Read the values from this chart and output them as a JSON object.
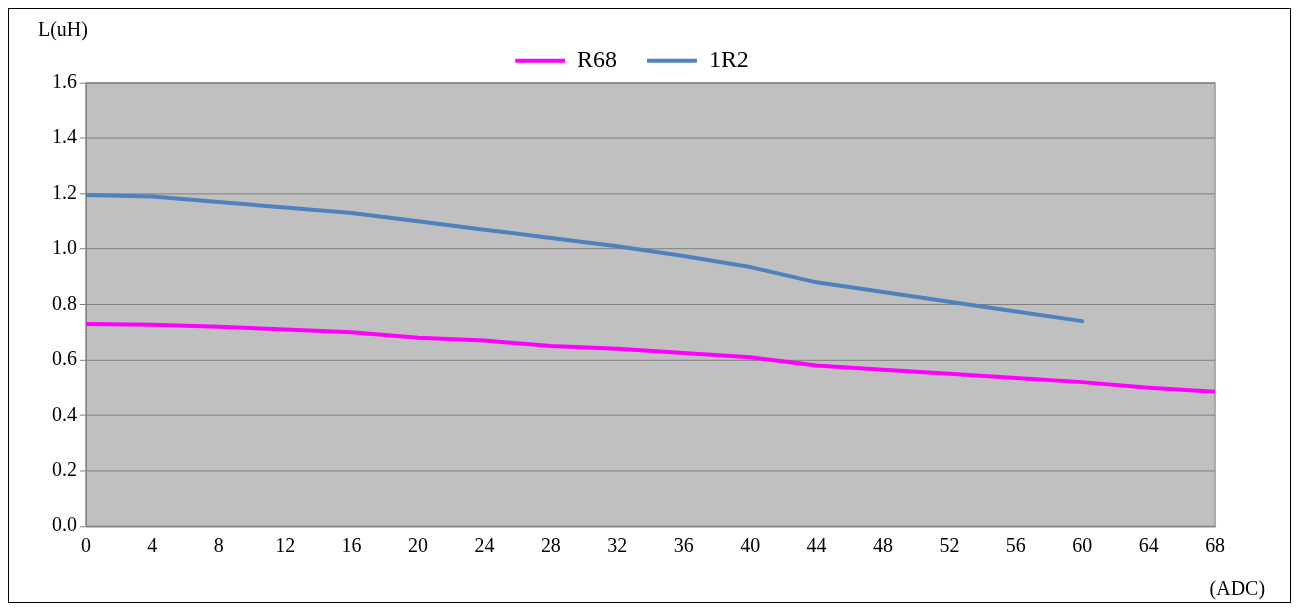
{
  "chart_data": {
    "type": "line",
    "xlabel": "(ADC)",
    "ylabel": "L(uH)",
    "x": [
      0,
      4,
      8,
      12,
      16,
      20,
      24,
      28,
      32,
      36,
      40,
      44,
      48,
      52,
      56,
      60,
      64,
      68
    ],
    "series": [
      {
        "name": "R68",
        "color": "#ff00ff",
        "values": [
          0.73,
          0.727,
          0.72,
          0.71,
          0.7,
          0.68,
          0.67,
          0.65,
          0.64,
          0.625,
          0.61,
          0.58,
          0.565,
          0.55,
          0.535,
          0.52,
          0.5,
          0.485
        ]
      },
      {
        "name": "1R2",
        "color": "#4f81bd",
        "values": [
          1.195,
          1.19,
          1.17,
          1.15,
          1.13,
          1.1,
          1.07,
          1.04,
          1.01,
          0.975,
          0.935,
          0.88,
          0.845,
          0.81,
          0.775,
          0.74,
          null,
          null
        ]
      }
    ],
    "xlim": [
      0,
      68
    ],
    "xticks": [
      0,
      4,
      8,
      12,
      16,
      20,
      24,
      28,
      32,
      36,
      40,
      44,
      48,
      52,
      56,
      60,
      64,
      68
    ],
    "ylim": [
      0,
      1.6
    ],
    "yticks": [
      {
        "value": 0,
        "label": "0.0"
      },
      {
        "value": 0.2,
        "label": "0.2"
      },
      {
        "value": 0.4,
        "label": "0.4"
      },
      {
        "value": 0.6,
        "label": "0.6"
      },
      {
        "value": 0.8,
        "label": "0.8"
      },
      {
        "value": 1,
        "label": "1.0"
      },
      {
        "value": 1.2,
        "label": "1.2"
      },
      {
        "value": 1.4,
        "label": "1.4"
      },
      {
        "value": 1.6,
        "label": "1.6"
      }
    ],
    "grid": "y",
    "legend": "top",
    "marker": "none",
    "line_style": "solid"
  }
}
